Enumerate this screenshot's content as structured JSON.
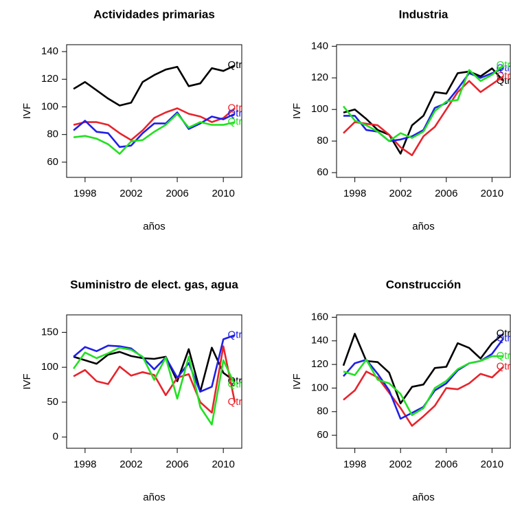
{
  "chart_data": [
    {
      "type": "line",
      "title": "Actividades primarias",
      "x_label": "años",
      "y_label": "IVF",
      "x": [
        1997,
        1998,
        1999,
        2000,
        2001,
        2002,
        2003,
        2004,
        2005,
        2006,
        2007,
        2008,
        2009,
        2010,
        2011
      ],
      "xlim": [
        1996.4,
        2011.6
      ],
      "xticks": [
        1998,
        2002,
        2006,
        2010
      ],
      "ylim": [
        49,
        145
      ],
      "yticks": [
        60,
        80,
        100,
        120,
        140
      ],
      "series": [
        {
          "name": "Qtr",
          "color": "#000000",
          "values": [
            113,
            118,
            112,
            106,
            101,
            103,
            118,
            123,
            127,
            129,
            115,
            117,
            128,
            126,
            130
          ]
        },
        {
          "name": "Qtr",
          "color": "#e8232b",
          "values": [
            87,
            89,
            89,
            87,
            81,
            76,
            83,
            92,
            96,
            99,
            95,
            93,
            89,
            92,
            99
          ]
        },
        {
          "name": "Qtr",
          "color": "#1f1fe6",
          "values": [
            83,
            90,
            82,
            81,
            71,
            72,
            81,
            88,
            88,
            96,
            84,
            88,
            93,
            91,
            95
          ]
        },
        {
          "name": "Qtr",
          "color": "#22e022",
          "values": [
            78,
            79,
            77,
            73,
            66,
            75,
            76,
            82,
            87,
            95,
            85,
            89,
            87,
            87,
            89
          ]
        }
      ]
    },
    {
      "type": "line",
      "title": "Industria",
      "x_label": "años",
      "y_label": "IVF",
      "x": [
        1997,
        1998,
        1999,
        2000,
        2001,
        2002,
        2003,
        2004,
        2005,
        2006,
        2007,
        2008,
        2009,
        2010,
        2011
      ],
      "xlim": [
        1996.4,
        2011.6
      ],
      "xticks": [
        1998,
        2002,
        2006,
        2010
      ],
      "ylim": [
        57,
        141
      ],
      "yticks": [
        60,
        80,
        100,
        120,
        140
      ],
      "series": [
        {
          "name": "Qtr",
          "color": "#000000",
          "values": [
            98,
            100,
            94,
            87,
            84,
            72,
            90,
            96,
            111,
            110,
            123,
            124,
            121,
            126,
            118
          ]
        },
        {
          "name": "Qtr",
          "color": "#e8232b",
          "values": [
            85,
            92,
            91,
            90,
            84,
            76,
            71,
            83,
            89,
            100,
            111,
            118,
            111,
            116,
            121
          ]
        },
        {
          "name": "Qtr",
          "color": "#1f1fe6",
          "values": [
            96,
            96,
            87,
            86,
            80,
            81,
            83,
            87,
            101,
            104,
            113,
            123,
            120,
            123,
            126
          ]
        },
        {
          "name": "Qtr",
          "color": "#22e022",
          "values": [
            102,
            93,
            90,
            86,
            80,
            85,
            82,
            86,
            99,
            105,
            106,
            125,
            118,
            122,
            128
          ]
        }
      ]
    },
    {
      "type": "line",
      "title": "Suministro de elect. gas, agua",
      "x_label": "años",
      "y_label": "IVF",
      "x": [
        1997,
        1998,
        1999,
        2000,
        2001,
        2002,
        2003,
        2004,
        2005,
        2006,
        2007,
        2008,
        2009,
        2010,
        2011
      ],
      "xlim": [
        1996.4,
        2011.6
      ],
      "xticks": [
        1998,
        2002,
        2006,
        2010
      ],
      "ylim": [
        -16,
        175
      ],
      "yticks": [
        0,
        50,
        100,
        150
      ],
      "series": [
        {
          "name": "Qtr",
          "color": "#000000",
          "values": [
            115,
            110,
            105,
            118,
            122,
            116,
            113,
            112,
            115,
            80,
            126,
            65,
            128,
            92,
            80
          ]
        },
        {
          "name": "Qtr",
          "color": "#e8232b",
          "values": [
            87,
            96,
            80,
            76,
            101,
            88,
            93,
            89,
            60,
            85,
            90,
            50,
            35,
            130,
            50
          ]
        },
        {
          "name": "Qtr",
          "color": "#1f1fe6",
          "values": [
            115,
            129,
            123,
            131,
            130,
            127,
            114,
            97,
            114,
            85,
            106,
            65,
            72,
            140,
            146
          ]
        },
        {
          "name": "Qtr",
          "color": "#22e022",
          "values": [
            98,
            121,
            113,
            120,
            128,
            125,
            115,
            82,
            114,
            55,
            115,
            43,
            18,
            110,
            75
          ]
        }
      ]
    },
    {
      "type": "line",
      "title": "Construcción",
      "x_label": "años",
      "y_label": "IVF",
      "x": [
        1997,
        1998,
        1999,
        2000,
        2001,
        2002,
        2003,
        2004,
        2005,
        2006,
        2007,
        2008,
        2009,
        2010,
        2011
      ],
      "xlim": [
        1996.4,
        2011.6
      ],
      "xticks": [
        1998,
        2002,
        2006,
        2010
      ],
      "ylim": [
        49,
        162
      ],
      "yticks": [
        60,
        80,
        100,
        120,
        140,
        160
      ],
      "series": [
        {
          "name": "Qtr",
          "color": "#000000",
          "values": [
            119,
            146,
            123,
            122,
            113,
            87,
            101,
            103,
            117,
            118,
            138,
            134,
            125,
            138,
            146
          ]
        },
        {
          "name": "Qtr",
          "color": "#e8232b",
          "values": [
            90,
            98,
            114,
            109,
            96,
            83,
            68,
            76,
            85,
            100,
            99,
            104,
            112,
            109,
            118
          ]
        },
        {
          "name": "Qtr",
          "color": "#1f1fe6",
          "values": [
            110,
            121,
            124,
            112,
            98,
            74,
            79,
            84,
            98,
            104,
            115,
            121,
            123,
            129,
            142
          ]
        },
        {
          "name": "Qtr",
          "color": "#22e022",
          "values": [
            114,
            111,
            124,
            107,
            104,
            95,
            77,
            83,
            100,
            106,
            116,
            121,
            123,
            127,
            127
          ]
        }
      ]
    }
  ]
}
